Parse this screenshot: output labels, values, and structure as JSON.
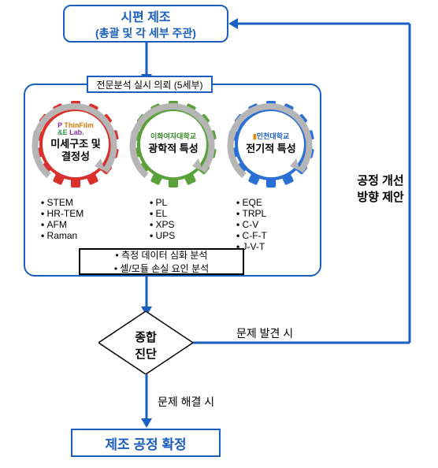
{
  "colors": {
    "primary": "#1a5fbf",
    "gear1": "#d9302c",
    "gear2": "#5aa13a",
    "gear3": "#2a6fd6",
    "arc": "#b5b5b5"
  },
  "top": {
    "line1": "시편 제조",
    "line2": "(총괄 및 각 세부 주관)"
  },
  "sub_header": "전문분석 실시 의뢰 (5세부)",
  "gears": [
    {
      "logo_html": "P ThinFilm<br>&E Lab.",
      "logo_color": "#8a2ea8",
      "title_a": "미세구조 및",
      "title_b": "결정성"
    },
    {
      "logo_html": "이화여자대학교",
      "logo_color": "#3a8a2a",
      "title_a": "광학적 특성",
      "title_b": ""
    },
    {
      "logo_html": "인천대학교",
      "logo_color": "#1a5fbf",
      "title_a": "전기적 특성",
      "title_b": ""
    }
  ],
  "methods": {
    "col1": [
      "STEM",
      "HR-TEM",
      "AFM",
      "Raman"
    ],
    "col2": [
      "PL",
      "EL",
      "XPS",
      "UPS"
    ],
    "col3": [
      "EQE",
      "TRPL",
      "C-V",
      "C-F-T",
      "J-V-T"
    ]
  },
  "analysis": {
    "line1": "측정 데이터 심화 분석",
    "line2": "셀/모듈 손실 요인 분석"
  },
  "decision": {
    "line1": "종합",
    "line2": "진단"
  },
  "edges": {
    "problem_found": "문제 발견 시",
    "problem_solved": "문제 해결 시",
    "feedback_a": "공정 개선",
    "feedback_b": "방향 제안"
  },
  "final": "제조 공정 확정",
  "typography": {
    "title_fontsize": 15,
    "gear_title_fontsize": 13,
    "method_fontsize": 12,
    "edge_fontsize": 14
  }
}
